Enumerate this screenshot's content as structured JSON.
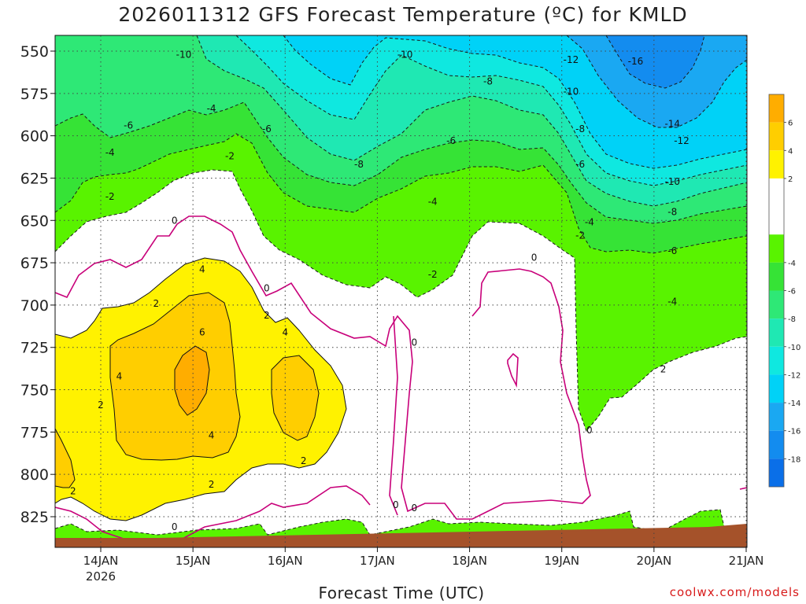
{
  "page": {
    "title": "2026011312 GFS Forecast Temperature (ºC) for KMLD",
    "xlabel": "Forecast Time (UTC)",
    "credit": "coolwx.com/models"
  },
  "chart_data": {
    "type": "heatmap",
    "title": "2026011312 GFS Forecast Temperature (ºC) for KMLD",
    "xlabel": "Forecast Time (UTC)",
    "ylabel": "",
    "x_ticks": [
      {
        "label": "14JAN",
        "sub": "2026"
      },
      {
        "label": "15JAN",
        "sub": ""
      },
      {
        "label": "16JAN",
        "sub": ""
      },
      {
        "label": "17JAN",
        "sub": ""
      },
      {
        "label": "18JAN",
        "sub": ""
      },
      {
        "label": "19JAN",
        "sub": ""
      },
      {
        "label": "20JAN",
        "sub": ""
      },
      {
        "label": "21JAN",
        "sub": ""
      }
    ],
    "y_ticks": [
      550,
      575,
      600,
      625,
      650,
      675,
      700,
      725,
      750,
      775,
      800,
      825
    ],
    "y_range": [
      540,
      840
    ],
    "x_range_days": [
      13.6,
      21.0
    ],
    "colorbar": {
      "ticks": [
        6,
        4,
        2,
        -4,
        -6,
        -8,
        -10,
        -12,
        -14,
        -16,
        -18
      ],
      "bins": [
        {
          "from": 6,
          "to": 8,
          "color": "#ffad00"
        },
        {
          "from": 4,
          "to": 6,
          "color": "#ffce00"
        },
        {
          "from": 2,
          "to": 4,
          "color": "#fff200"
        },
        {
          "from": -2,
          "to": 2,
          "color": "#ffffff"
        },
        {
          "from": -4,
          "to": -2,
          "color": "#59f300"
        },
        {
          "from": -6,
          "to": -4,
          "color": "#36e336"
        },
        {
          "from": -8,
          "to": -6,
          "color": "#2ee876"
        },
        {
          "from": -10,
          "to": -8,
          "color": "#1fe8b3"
        },
        {
          "from": -12,
          "to": -10,
          "color": "#0fe8e0"
        },
        {
          "from": -14,
          "to": -12,
          "color": "#00d2f7"
        },
        {
          "from": -16,
          "to": -14,
          "color": "#1aa8f2"
        },
        {
          "from": -18,
          "to": -16,
          "color": "#138cef"
        },
        {
          "from": -20,
          "to": -18,
          "color": "#0a6fe8"
        }
      ]
    },
    "contour_labels": [
      {
        "text": "-10",
        "x": 14.9,
        "y": 552
      },
      {
        "text": "-10",
        "x": 17.3,
        "y": 552
      },
      {
        "text": "-12",
        "x": 19.1,
        "y": 555
      },
      {
        "text": "-16",
        "x": 19.8,
        "y": 556
      },
      {
        "text": "-8",
        "x": 18.2,
        "y": 568
      },
      {
        "text": "-10",
        "x": 19.1,
        "y": 574
      },
      {
        "text": "-4",
        "x": 15.2,
        "y": 584
      },
      {
        "text": "-6",
        "x": 14.3,
        "y": 594
      },
      {
        "text": "-6",
        "x": 15.8,
        "y": 596
      },
      {
        "text": "-8",
        "x": 19.2,
        "y": 596
      },
      {
        "text": "-14",
        "x": 20.2,
        "y": 593
      },
      {
        "text": "-6",
        "x": 17.8,
        "y": 603
      },
      {
        "text": "-12",
        "x": 20.3,
        "y": 603
      },
      {
        "text": "-4",
        "x": 14.1,
        "y": 610
      },
      {
        "text": "-2",
        "x": 15.4,
        "y": 612
      },
      {
        "text": "-8",
        "x": 16.8,
        "y": 617
      },
      {
        "text": "-6",
        "x": 19.2,
        "y": 617
      },
      {
        "text": "-10",
        "x": 20.2,
        "y": 627
      },
      {
        "text": "-2",
        "x": 14.1,
        "y": 636
      },
      {
        "text": "-4",
        "x": 17.6,
        "y": 639
      },
      {
        "text": "-8",
        "x": 20.2,
        "y": 645
      },
      {
        "text": "0",
        "x": 14.8,
        "y": 650
      },
      {
        "text": "-4",
        "x": 19.3,
        "y": 651
      },
      {
        "text": "-2",
        "x": 19.2,
        "y": 659
      },
      {
        "text": "-6",
        "x": 20.2,
        "y": 668
      },
      {
        "text": "0",
        "x": 18.7,
        "y": 672
      },
      {
        "text": "4",
        "x": 15.1,
        "y": 679
      },
      {
        "text": "-2",
        "x": 17.6,
        "y": 682
      },
      {
        "text": "0",
        "x": 15.8,
        "y": 690
      },
      {
        "text": "2",
        "x": 14.6,
        "y": 699
      },
      {
        "text": "-4",
        "x": 20.2,
        "y": 698
      },
      {
        "text": "2",
        "x": 15.8,
        "y": 706
      },
      {
        "text": "6",
        "x": 15.1,
        "y": 716
      },
      {
        "text": "4",
        "x": 16.0,
        "y": 716
      },
      {
        "text": "0",
        "x": 17.4,
        "y": 722
      },
      {
        "text": "2",
        "x": 20.1,
        "y": 738
      },
      {
        "text": "4",
        "x": 14.2,
        "y": 742
      },
      {
        "text": "2",
        "x": 14.0,
        "y": 759
      },
      {
        "text": "0",
        "x": 19.3,
        "y": 774
      },
      {
        "text": "4",
        "x": 15.2,
        "y": 777
      },
      {
        "text": "2",
        "x": 16.2,
        "y": 792
      },
      {
        "text": "2",
        "x": 15.2,
        "y": 806
      },
      {
        "text": "2",
        "x": 13.7,
        "y": 810
      },
      {
        "text": "0",
        "x": 17.2,
        "y": 818
      },
      {
        "text": "0",
        "x": 17.4,
        "y": 820
      },
      {
        "text": "0",
        "x": 14.8,
        "y": 831
      }
    ]
  }
}
